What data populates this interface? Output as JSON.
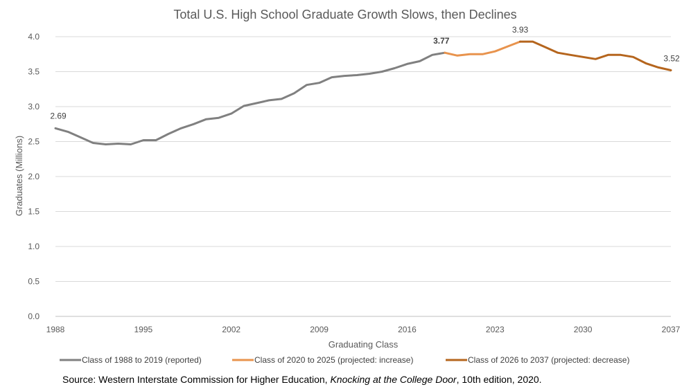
{
  "chart_data": {
    "type": "line",
    "title": "Total U.S. High School Graduate Growth Slows, then Declines",
    "xlabel": "Graduating Class",
    "ylabel": "Graduates (Millions)",
    "ylim": [
      0,
      4.0
    ],
    "xlim": [
      1988,
      2037
    ],
    "x_ticks": [
      "1988",
      "1995",
      "2002",
      "2009",
      "2016",
      "2023",
      "2030",
      "2037"
    ],
    "y_ticks": [
      "0.0",
      "0.5",
      "1.0",
      "1.5",
      "2.0",
      "2.5",
      "3.0",
      "3.5",
      "4.0"
    ],
    "grid": "horizontal",
    "legend_position": "bottom",
    "series": [
      {
        "name": "Class of 1988 to 2019 (reported)",
        "color": "#808080",
        "x": [
          1988,
          1989,
          1990,
          1991,
          1992,
          1993,
          1994,
          1995,
          1996,
          1997,
          1998,
          1999,
          2000,
          2001,
          2002,
          2003,
          2004,
          2005,
          2006,
          2007,
          2008,
          2009,
          2010,
          2011,
          2012,
          2013,
          2014,
          2015,
          2016,
          2017,
          2018,
          2019
        ],
        "values": [
          2.69,
          2.64,
          2.56,
          2.48,
          2.46,
          2.47,
          2.46,
          2.52,
          2.52,
          2.61,
          2.69,
          2.75,
          2.82,
          2.84,
          2.9,
          3.01,
          3.05,
          3.09,
          3.11,
          3.19,
          3.31,
          3.34,
          3.42,
          3.44,
          3.45,
          3.47,
          3.5,
          3.55,
          3.61,
          3.65,
          3.74,
          3.77
        ]
      },
      {
        "name": "Class of 2020 to 2025 (projected: increase)",
        "color": "#E8934D",
        "x": [
          2019,
          2020,
          2021,
          2022,
          2023,
          2024,
          2025
        ],
        "values": [
          3.77,
          3.73,
          3.75,
          3.75,
          3.79,
          3.86,
          3.93
        ]
      },
      {
        "name": "Class of 2026 to 2037 (projected: decrease)",
        "color": "#B5651D",
        "x": [
          2025,
          2026,
          2027,
          2028,
          2029,
          2030,
          2031,
          2032,
          2033,
          2034,
          2035,
          2036,
          2037
        ],
        "values": [
          3.93,
          3.93,
          3.85,
          3.77,
          3.74,
          3.71,
          3.68,
          3.74,
          3.74,
          3.71,
          3.62,
          3.56,
          3.52
        ]
      }
    ],
    "annotations": [
      {
        "x": 1988,
        "y": 2.69,
        "text": "2.69"
      },
      {
        "x": 2019,
        "y": 3.77,
        "text": "3.77"
      },
      {
        "x": 2025,
        "y": 3.93,
        "text": "3.93"
      },
      {
        "x": 2037,
        "y": 3.52,
        "text": "3.52"
      }
    ]
  },
  "source": {
    "prefix": "Source: Western Interstate Commission for Higher Education, ",
    "italic": "Knocking at the College Door",
    "suffix": ", 10th edition, 2020."
  }
}
